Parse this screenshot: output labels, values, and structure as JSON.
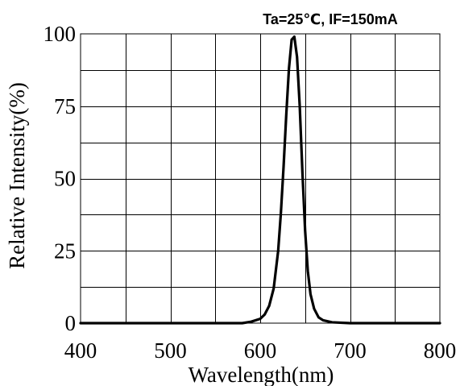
{
  "chart_data": {
    "type": "line",
    "title": "Ta=25℃, IF=150mA",
    "xlabel": "Wavelength(nm)",
    "ylabel": "Relative Intensity(%)",
    "xlim": [
      400,
      800
    ],
    "ylim": [
      0,
      100
    ],
    "x_ticks": [
      400,
      450,
      500,
      550,
      600,
      650,
      700,
      750,
      800
    ],
    "x_tick_labels": [
      "400",
      "",
      "500",
      "",
      "600",
      "",
      "700",
      "",
      "800"
    ],
    "y_ticks": [
      0,
      12.5,
      25,
      37.5,
      50,
      62.5,
      75,
      87.5,
      100
    ],
    "y_tick_labels": [
      "0",
      "",
      "25",
      "",
      "50",
      "",
      "75",
      "",
      "100"
    ],
    "grid": true,
    "series": [
      {
        "color": "#000000",
        "x": [
          400,
          500,
          580,
          590,
          600,
          605,
          610,
          615,
          620,
          623,
          626,
          629,
          632,
          635,
          638,
          641,
          644,
          647,
          650,
          653,
          656,
          660,
          665,
          670,
          680,
          700,
          800
        ],
        "y": [
          0,
          0,
          0,
          0.5,
          1.5,
          3,
          6,
          12,
          25,
          38,
          54,
          72,
          88,
          98,
          99,
          92,
          75,
          52,
          32,
          18,
          10,
          5,
          2,
          1,
          0.3,
          0,
          0
        ]
      }
    ]
  }
}
